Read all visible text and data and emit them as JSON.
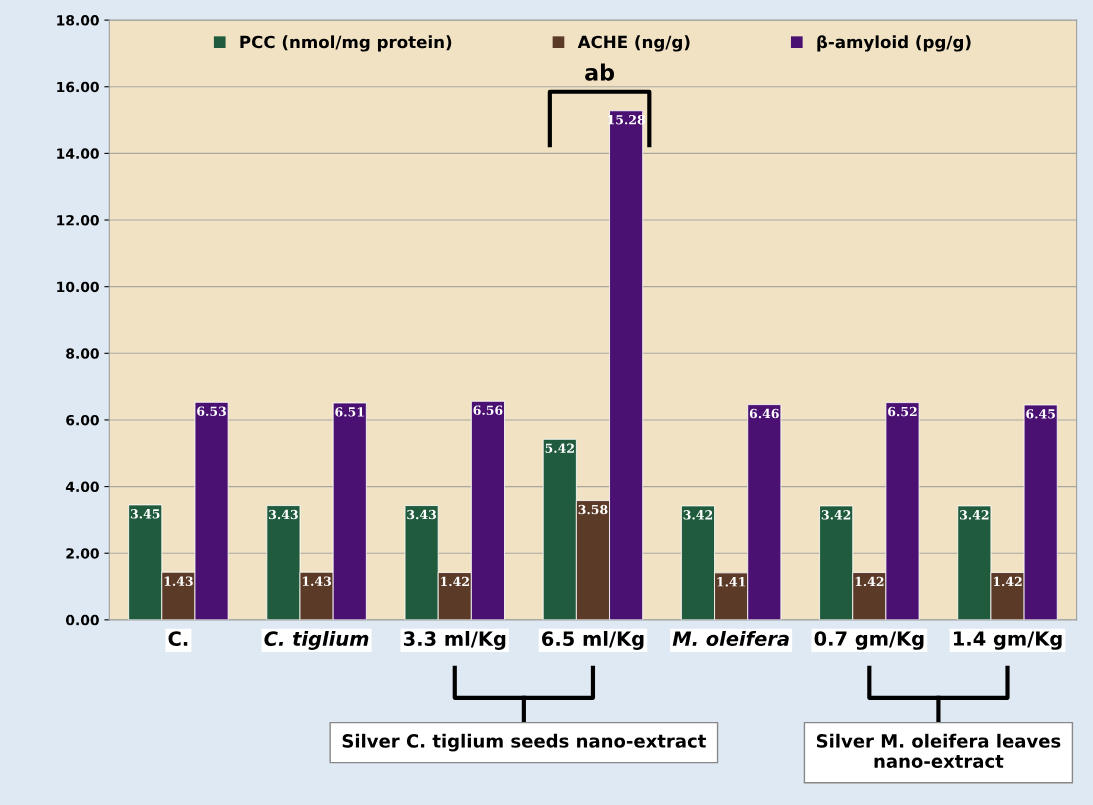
{
  "chart_data": {
    "type": "bar",
    "categories": [
      "C.",
      "C. tiglium",
      "3.3 ml/Kg",
      "6.5 ml/Kg",
      "M. oleifera",
      "0.7 gm/Kg",
      "1.4 gm/Kg"
    ],
    "series": [
      {
        "name": "PCC (nmol/mg protein)",
        "color": "#1f5b3c",
        "values": [
          3.45,
          3.43,
          3.43,
          5.42,
          3.42,
          3.42,
          3.42
        ]
      },
      {
        "name": "ACHE (ng/g)",
        "color": "#5b3a27",
        "values": [
          1.43,
          1.43,
          1.42,
          3.58,
          1.41,
          1.42,
          1.42
        ]
      },
      {
        "name": "β-amyloid (pg/g)",
        "color": "#4a1172",
        "values": [
          6.53,
          6.51,
          6.56,
          15.28,
          6.46,
          6.52,
          6.45
        ]
      }
    ],
    "ylim": [
      0,
      18
    ],
    "yticks": [
      {
        "value": 0,
        "label": "0.00"
      },
      {
        "value": 2,
        "label": "2.00"
      },
      {
        "value": 4,
        "label": "4.00"
      },
      {
        "value": 6,
        "label": "6.00"
      },
      {
        "value": 8,
        "label": "8.00"
      },
      {
        "value": 10,
        "label": "10.00"
      },
      {
        "value": 12,
        "label": "12.00"
      },
      {
        "value": 14,
        "label": "14.00"
      },
      {
        "value": 16,
        "label": "16.00"
      },
      {
        "value": 18,
        "label": "18.00"
      }
    ],
    "grid": "y",
    "legend": "top",
    "data_labels": true,
    "annotations": [
      "ab",
      "Silver C. tiglium seeds nano-extract",
      "Silver M. oleifera leaves nano-extract"
    ]
  }
}
